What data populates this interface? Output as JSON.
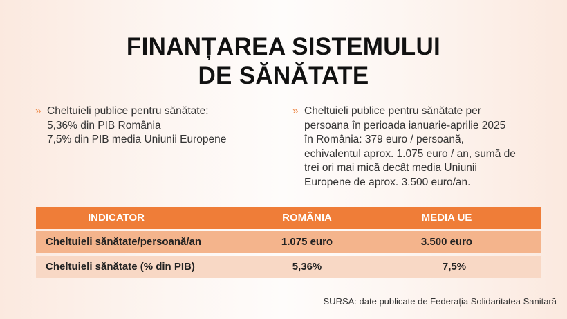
{
  "title": {
    "lines": [
      "FINANȚAREA SISTEMULUI",
      "DE SĂNĂTATE"
    ]
  },
  "bullets": [
    {
      "marker": "»",
      "lines": [
        "Cheltuieli publice pentru sănătate:",
        "5,36% din PIB România",
        "7,5% din PIB media Uniunii Europene"
      ]
    },
    {
      "marker": "»",
      "lines": [
        "Cheltuieli publice pentru sănătate per",
        "persoana în perioada ianuarie-aprilie 2025",
        "în România: 379 euro / persoană,",
        "echivalentul aprox. 1.075 euro / an, sumă de",
        "trei ori mai mică decât media Uniunii",
        "Europene de aprox. 3.500 euro/an."
      ]
    }
  ],
  "table": {
    "header": [
      "INDICATOR",
      "ROMÂNIA",
      "MEDIA UE"
    ],
    "rows": [
      [
        "Cheltuieli sănătate/persoană/an",
        "1.075 euro",
        "3.500 euro"
      ],
      [
        "Cheltuieli sănătate (% din PIB)",
        "5,36%",
        "7,5%"
      ]
    ]
  },
  "source": "SURSA: date publicate de Federația Solidaritatea Sanitară"
}
